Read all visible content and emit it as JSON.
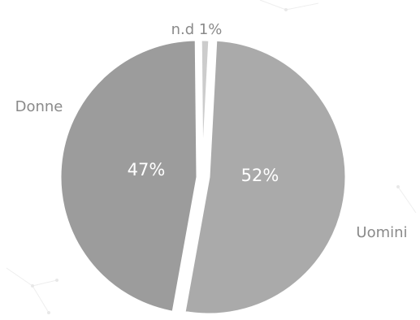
{
  "chart_data": {
    "type": "pie",
    "categories": [
      "Uomini",
      "Donne",
      "n.d"
    ],
    "values": [
      52,
      47,
      1
    ],
    "value_labels": [
      "52%",
      "47%",
      ""
    ],
    "outer_labels": [
      "Uomini",
      "Donne",
      "n.d 1%"
    ],
    "colors": [
      "#aaaaaa",
      "#9c9c9c",
      "#cccccc"
    ],
    "label_color": "#8a8a8a",
    "legend": "none"
  }
}
